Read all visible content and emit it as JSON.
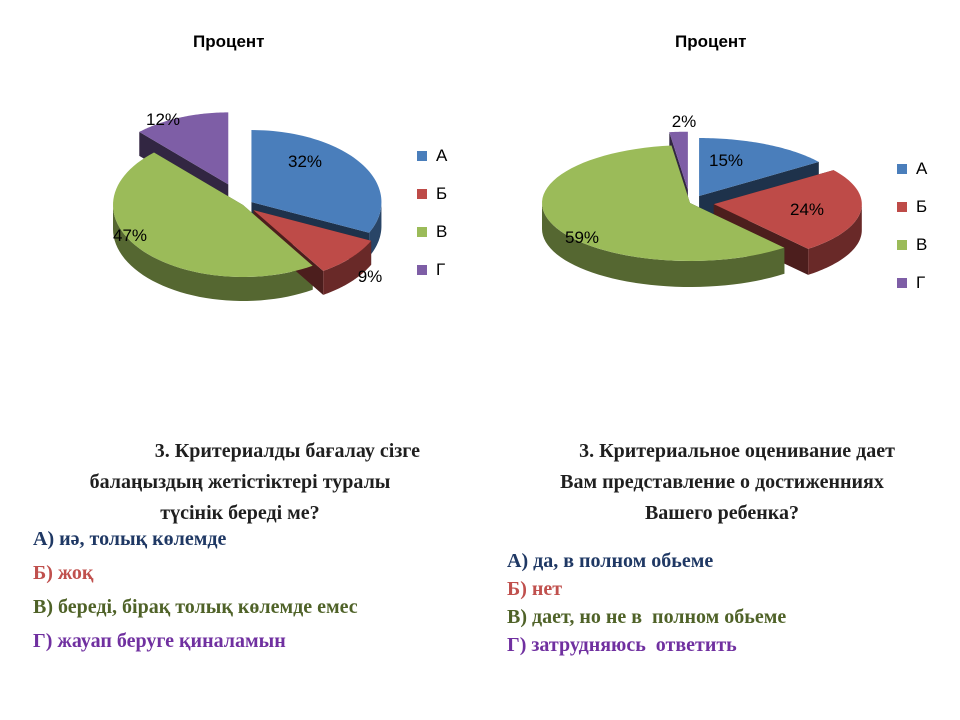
{
  "chart_data": [
    {
      "type": "pie",
      "title": "Процент",
      "categories": [
        "А",
        "Б",
        "В",
        "Г"
      ],
      "values": [
        32,
        9,
        47,
        12
      ],
      "data_labels": [
        "32%",
        "9%",
        "47%",
        "12%"
      ],
      "colors": [
        "#4a7ebb",
        "#be4b48",
        "#9bbb59",
        "#7e5ea6"
      ],
      "legend_position": "right"
    },
    {
      "type": "pie",
      "title": "Процент",
      "categories": [
        "А",
        "Б",
        "В",
        "Г"
      ],
      "values": [
        15,
        24,
        59,
        2
      ],
      "data_labels": [
        "15%",
        "24%",
        "59%",
        "2%"
      ],
      "colors": [
        "#4a7ebb",
        "#be4b48",
        "#9bbb59",
        "#7e5ea6"
      ],
      "legend_position": "right"
    }
  ],
  "left_question": {
    "lines": [
      "3. Критериалды бағалау сізге",
      "балаңыздың жетістіктері туралы",
      "түсінік береді ме?"
    ],
    "answers": [
      {
        "text": "А) иә, толық көлемде",
        "color": "#1f3864"
      },
      {
        "text": "Б) жоқ",
        "color": "#c0504d"
      },
      {
        "text": "В) береді, бірақ толық көлемде емес",
        "color": "#4f6228"
      },
      {
        "text": "Г) жауап беруге қиналамын",
        "color": "#7030a0"
      }
    ]
  },
  "right_question": {
    "lines": [
      "3. Критериальное оценивание дает",
      "Вам представление о достиженниях",
      "Вашего ребенка?"
    ],
    "answers": [
      {
        "text": "А) да, в полном обьеме",
        "color": "#1f3864"
      },
      {
        "text": "Б) нет",
        "color": "#c0504d"
      },
      {
        "text": "В) дает, но не в  полном обьеме",
        "color": "#4f6228"
      },
      {
        "text": "Г) затрудняюсь  ответить",
        "color": "#7030a0"
      }
    ]
  }
}
